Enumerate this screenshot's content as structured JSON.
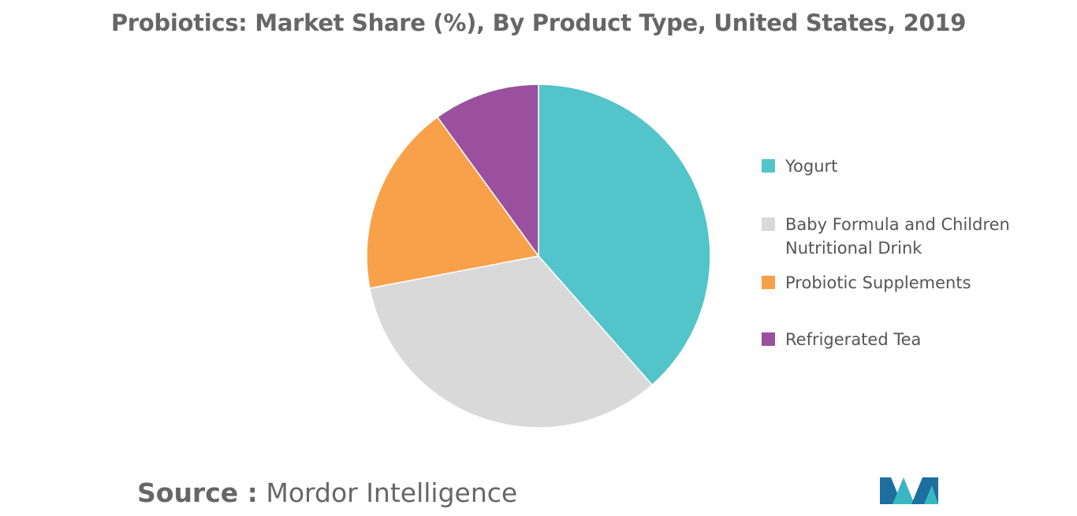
{
  "chart_data": {
    "type": "pie",
    "title": "Probiotics: Market Share (%), By Product Type, United States, 2019",
    "slices": [
      {
        "label": "Yogurt",
        "value": 38.5,
        "color": "#52c4ca"
      },
      {
        "label": "Baby Formula and Children Nutritional Drink",
        "value": 33.5,
        "color": "#d9d9d9"
      },
      {
        "label": "Probiotic Supplements",
        "value": 18.0,
        "color": "#f8a14a"
      },
      {
        "label": "Refrigerated Tea",
        "value": 10.0,
        "color": "#9a509e"
      }
    ],
    "legend_position": "right"
  },
  "source": {
    "label": "Source :",
    "text": "Mordor Intelligence"
  },
  "logo": {
    "icon": "mordor-intelligence-logo",
    "colors": [
      "#1e6fa0",
      "#38b6c2"
    ]
  }
}
